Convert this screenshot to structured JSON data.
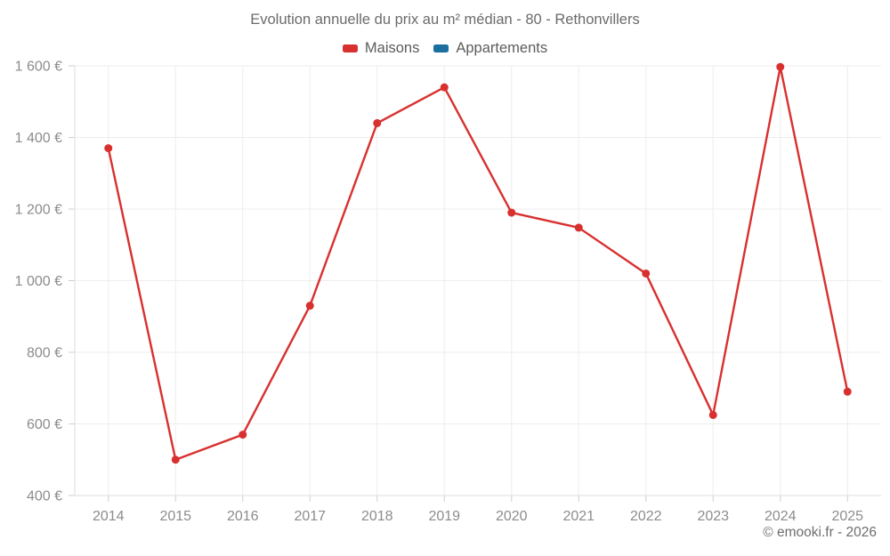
{
  "title": "Evolution annuelle du prix au m² médian - 80 - Rethonvillers",
  "copyright": "© emooki.fr - 2026",
  "chart_data": {
    "type": "line",
    "title": "Evolution annuelle du prix au m² médian - 80 - Rethonvillers",
    "categories": [
      "2014",
      "2015",
      "2016",
      "2017",
      "2018",
      "2019",
      "2020",
      "2021",
      "2022",
      "2023",
      "2024",
      "2025"
    ],
    "series": [
      {
        "name": "Maisons",
        "color": "#d8302f",
        "marker": "circle",
        "values": [
          1370,
          500,
          570,
          930,
          1440,
          1540,
          1190,
          1148,
          1020,
          625,
          1597,
          690
        ]
      },
      {
        "name": "Appartements",
        "color": "#1c6e9f",
        "marker": "circle",
        "values": []
      }
    ],
    "xlabel": "",
    "ylabel": "",
    "ylim": [
      400,
      1600
    ],
    "y_ticks": [
      {
        "value": 400,
        "label": "400 €"
      },
      {
        "value": 600,
        "label": "600 €"
      },
      {
        "value": 800,
        "label": "800 €"
      },
      {
        "value": 1000,
        "label": "1 000 €"
      },
      {
        "value": 1200,
        "label": "1 200 €"
      },
      {
        "value": 1400,
        "label": "1 400 €"
      },
      {
        "value": 1600,
        "label": "1 600 €"
      }
    ],
    "grid": true,
    "legend_position": "top",
    "value_suffix": " €"
  }
}
